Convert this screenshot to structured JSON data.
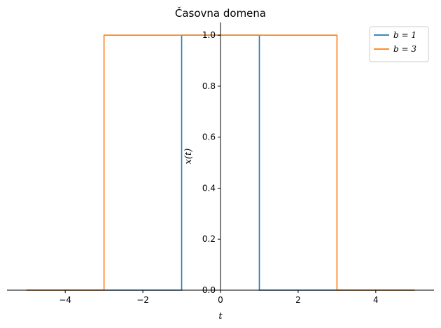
{
  "chart_data": {
    "type": "line",
    "title": "Časovna domena",
    "xlabel": "t",
    "ylabel": "x(t)",
    "xlim": [
      -5.5,
      5.5
    ],
    "ylim": [
      0,
      1.05
    ],
    "xticks": [
      -4,
      -2,
      0,
      2,
      4
    ],
    "yticks": [
      0.0,
      0.2,
      0.4,
      0.6,
      0.8,
      1.0
    ],
    "xtick_labels": [
      "−4",
      "−2",
      "0",
      "2",
      "4"
    ],
    "ytick_labels": [
      "0.0",
      "0.2",
      "0.4",
      "0.6",
      "0.8",
      "1.0"
    ],
    "grid": false,
    "legend_position": "top-right",
    "series": [
      {
        "name": "b = 1",
        "color": "#1f77b4",
        "x": [
          -5,
          -1,
          -1,
          1,
          1,
          5
        ],
        "y": [
          0,
          0,
          1,
          1,
          0,
          0
        ]
      },
      {
        "name": "b = 3",
        "color": "#ff7f0e",
        "x": [
          -5,
          -3,
          -3,
          3,
          3,
          5
        ],
        "y": [
          0,
          0,
          1,
          1,
          0,
          0
        ]
      }
    ]
  }
}
